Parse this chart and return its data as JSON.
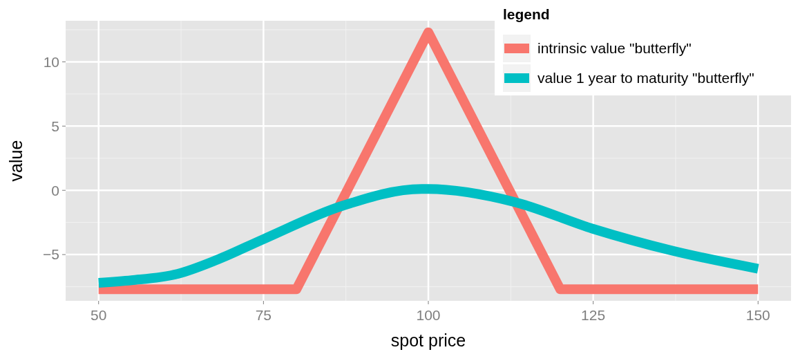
{
  "chart_data": {
    "type": "line",
    "xlabel": "spot price",
    "ylabel": "value",
    "legend_title": "legend",
    "legend": "top right",
    "grid": true,
    "line_style": "solid",
    "xlim": [
      45,
      155
    ],
    "ylim": [
      -8.6,
      13.2
    ],
    "xticks": [
      50,
      75,
      100,
      125,
      150
    ],
    "yticks": [
      -5,
      0,
      5,
      10
    ],
    "series": [
      {
        "name": "intrinsic value \"butterfly\"",
        "color": "#f8766d",
        "x": [
          50,
          80,
          100,
          120,
          150
        ],
        "values": [
          -7.7,
          -7.7,
          12.3,
          -7.7,
          -7.7
        ]
      },
      {
        "name": "value 1 year to maturity \"butterfly\"",
        "color": "#00bfc4",
        "x": [
          50,
          55,
          62,
          68,
          75,
          87,
          99,
          100,
          113,
          125,
          137,
          150
        ],
        "values": [
          -7.2,
          -7.0,
          -6.5,
          -5.4,
          -3.8,
          -1.2,
          0.1,
          0.1,
          -0.9,
          -3.0,
          -4.7,
          -6.1
        ]
      }
    ]
  }
}
